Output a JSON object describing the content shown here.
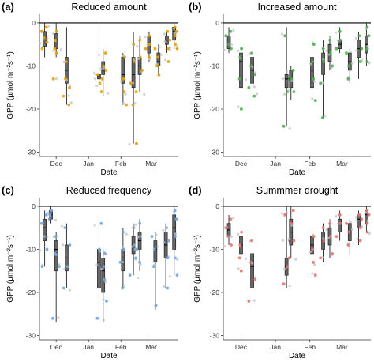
{
  "figure": {
    "ylabel": "GPP (µmol m⁻²s⁻¹)",
    "xlabel": "Date",
    "y_ticks": [
      "0",
      "-10",
      "-20",
      "-30"
    ],
    "x_ticks": [
      "Dec",
      "Jan",
      "Feb",
      "Mar"
    ]
  },
  "chart_data": [
    {
      "type": "scatter",
      "panel": "(a)",
      "title": "Reduced amount",
      "xlabel": "Date",
      "ylabel": "GPP (µmol m⁻²s⁻¹)",
      "ylim": [
        -31,
        2
      ],
      "grid": false,
      "x_ticks": [
        "Dec",
        "Jan",
        "Feb",
        "Mar"
      ],
      "point_color": "#E69F00",
      "reference_line": 0,
      "series": [
        {
          "x": "2019-11-20",
          "min": -8,
          "q1": -5.5,
          "median": -3.5,
          "q3": -2,
          "max": 0,
          "points": [
            -1,
            -2,
            -3.5,
            -4.5,
            -6
          ]
        },
        {
          "x": "2019-12-01",
          "min": -8,
          "q1": -6,
          "median": -4,
          "q3": -2.5,
          "max": 0,
          "points": [
            -2,
            -4,
            -6,
            -7,
            -13
          ]
        },
        {
          "x": "2019-12-11",
          "min": -19,
          "q1": -14,
          "median": -11,
          "q3": -8,
          "max": -1,
          "points": [
            -9,
            -13,
            -15,
            -17,
            -19
          ]
        },
        {
          "x": "2020-01-11",
          "min": -14,
          "q1": -13,
          "median": -12.5,
          "q3": -12,
          "max": 0,
          "points": [
            -12,
            -13,
            -14
          ]
        },
        {
          "x": "2020-01-15",
          "min": -17,
          "q1": -12,
          "median": -11,
          "q3": -9,
          "max": -6,
          "points": [
            -7,
            -10,
            -11,
            -16
          ]
        },
        {
          "x": "2020-02-03",
          "min": -19,
          "q1": -14,
          "median": -12,
          "q3": -8,
          "max": -7,
          "points": [
            -8,
            -13,
            -16,
            -19
          ]
        },
        {
          "x": "2020-02-13",
          "min": -28,
          "q1": -15,
          "median": -12,
          "q3": -8,
          "max": -2,
          "points": [
            -5,
            -9,
            -14,
            -19,
            -28
          ]
        },
        {
          "x": "2020-02-19",
          "min": -16,
          "q1": -12,
          "median": -10,
          "q3": -8,
          "max": -3,
          "points": [
            -4,
            -8,
            -11,
            -16
          ]
        },
        {
          "x": "2020-02-28",
          "min": -9,
          "q1": -7,
          "median": -5,
          "q3": -3,
          "max": -2,
          "points": [
            -3,
            -5,
            -6,
            -8
          ]
        },
        {
          "x": "2020-03-08",
          "min": -12,
          "q1": -10,
          "median": -9,
          "q3": -7,
          "max": -5,
          "points": [
            -6,
            -8,
            -10,
            -12
          ]
        },
        {
          "x": "2020-03-16",
          "min": -7,
          "q1": -5,
          "median": -4,
          "q3": -3,
          "max": -2,
          "points": [
            -2,
            -4,
            -6,
            -9
          ]
        },
        {
          "x": "2020-03-23",
          "min": -6,
          "q1": -4,
          "median": -2,
          "q3": -1,
          "max": 0,
          "points": [
            -1,
            -2,
            -3,
            -5,
            -6
          ]
        }
      ]
    },
    {
      "type": "scatter",
      "panel": "(b)",
      "title": "Increased amount",
      "xlabel": "Date",
      "ylabel": "GPP (µmol m⁻²s⁻¹)",
      "ylim": [
        -31,
        2
      ],
      "grid": false,
      "x_ticks": [
        "Dec",
        "Jan",
        "Feb",
        "Mar"
      ],
      "point_color": "#4DAF4A",
      "reference_line": 0,
      "series": [
        {
          "x": "2019-11-20",
          "min": -7,
          "q1": -6,
          "median": -5,
          "q3": -3,
          "max": -1,
          "points": [
            -2,
            -3,
            -5,
            -6
          ]
        },
        {
          "x": "2019-12-01",
          "min": -21,
          "q1": -15,
          "median": -9,
          "q3": -7,
          "max": -6,
          "points": [
            -6,
            -8,
            -13,
            -20
          ]
        },
        {
          "x": "2019-12-11",
          "min": -17,
          "q1": -14,
          "median": -11,
          "q3": -8,
          "max": -6,
          "points": [
            -7,
            -10,
            -12,
            -15,
            -17
          ]
        },
        {
          "x": "2020-01-11",
          "min": -24,
          "q1": -15,
          "median": -13,
          "q3": -12,
          "max": -1,
          "points": [
            -3,
            -13,
            -16,
            -24
          ]
        },
        {
          "x": "2020-01-15",
          "min": -18,
          "q1": -15,
          "median": -13,
          "q3": -11,
          "max": -10,
          "points": [
            -11,
            -13,
            -16
          ]
        },
        {
          "x": "2020-02-03",
          "min": -18,
          "q1": -15,
          "median": -11,
          "q3": -8,
          "max": -3,
          "points": [
            -5,
            -9,
            -13,
            -18
          ]
        },
        {
          "x": "2020-02-13",
          "min": -22,
          "q1": -12,
          "median": -10,
          "q3": -7,
          "max": -4,
          "points": [
            -6,
            -9,
            -14,
            -22
          ]
        },
        {
          "x": "2020-02-19",
          "min": -11,
          "q1": -9,
          "median": -7,
          "q3": -5,
          "max": -3,
          "points": [
            -4,
            -7,
            -10
          ]
        },
        {
          "x": "2020-02-28",
          "min": -7,
          "q1": -6,
          "median": -5,
          "q3": -4,
          "max": -1,
          "points": [
            -2,
            -4,
            -6
          ]
        },
        {
          "x": "2020-03-08",
          "min": -14,
          "q1": -11,
          "median": -9,
          "q3": -7,
          "max": -6,
          "points": [
            -7,
            -10,
            -13
          ]
        },
        {
          "x": "2020-03-16",
          "min": -13,
          "q1": -8,
          "median": -6,
          "q3": -4,
          "max": -2,
          "points": [
            -3,
            -6,
            -9
          ]
        },
        {
          "x": "2020-03-23",
          "min": -10,
          "q1": -7,
          "median": -5,
          "q3": -3,
          "max": 0,
          "points": [
            -1,
            -3,
            -6,
            -9
          ]
        }
      ]
    },
    {
      "type": "scatter",
      "panel": "(c)",
      "title": "Reduced frequency",
      "xlabel": "Date",
      "ylabel": "GPP (µmol m⁻²s⁻¹)",
      "ylim": [
        -31,
        2
      ],
      "grid": false,
      "x_ticks": [
        "Dec",
        "Jan",
        "Feb",
        "Mar"
      ],
      "point_color": "#6EA6E6",
      "reference_line": 0,
      "series": [
        {
          "x": "2019-11-20",
          "min": -14,
          "q1": -8,
          "median": -5,
          "q3": -3,
          "max": -1,
          "points": [
            -2,
            -4,
            -7,
            -10,
            -14
          ]
        },
        {
          "x": "2019-11-26",
          "min": -4,
          "q1": -3,
          "median": -2,
          "q3": -1,
          "max": 0,
          "points": [
            -1,
            -2,
            -3
          ]
        },
        {
          "x": "2019-12-01",
          "min": -27,
          "q1": -15,
          "median": -10,
          "q3": -8,
          "max": -6,
          "points": [
            -7,
            -11,
            -14,
            -26
          ]
        },
        {
          "x": "2019-12-11",
          "min": -19,
          "q1": -15,
          "median": -12,
          "q3": -9,
          "max": -4,
          "points": [
            -5,
            -9,
            -14,
            -19
          ]
        },
        {
          "x": "2020-01-11",
          "min": -26,
          "q1": -19,
          "median": -13,
          "q3": -10,
          "max": -3,
          "points": [
            -4,
            -10,
            -14,
            -26
          ]
        },
        {
          "x": "2020-01-15",
          "min": -27,
          "q1": -20,
          "median": -15,
          "q3": -12,
          "max": -10,
          "points": [
            -11,
            -14,
            -17,
            -22
          ]
        },
        {
          "x": "2020-02-03",
          "min": -19,
          "q1": -15,
          "median": -12,
          "q3": -10,
          "max": -5,
          "points": [
            -6,
            -10,
            -13,
            -19
          ]
        },
        {
          "x": "2020-02-13",
          "min": -16,
          "q1": -11,
          "median": -9,
          "q3": -7,
          "max": -4,
          "points": [
            -5,
            -9,
            -12,
            -16
          ]
        },
        {
          "x": "2020-02-19",
          "min": -15,
          "q1": -10,
          "median": -8,
          "q3": -6,
          "max": -3,
          "points": [
            -4,
            -7,
            -10,
            -13
          ]
        },
        {
          "x": "2020-03-05",
          "min": -24,
          "q1": -13,
          "median": -10,
          "q3": -8,
          "max": -6,
          "points": [
            -7,
            -10,
            -14,
            -23
          ]
        },
        {
          "x": "2020-03-15",
          "min": -19,
          "q1": -12,
          "median": -9,
          "q3": -6,
          "max": -4,
          "points": [
            -5,
            -8,
            -12,
            -19
          ]
        },
        {
          "x": "2020-03-23",
          "min": -16,
          "q1": -10,
          "median": -5,
          "q3": -2,
          "max": 0,
          "points": [
            -1,
            -3,
            -7,
            -12,
            -16
          ]
        }
      ]
    },
    {
      "type": "scatter",
      "panel": "(d)",
      "title": "Summmer drought",
      "xlabel": "Date",
      "ylabel": "GPP (µmol m⁻²s⁻¹)",
      "ylim": [
        -31,
        2
      ],
      "grid": false,
      "x_ticks": [
        "Dec",
        "Jan",
        "Feb",
        "Mar"
      ],
      "point_color": "#E8736C",
      "reference_line": 0,
      "series": [
        {
          "x": "2019-11-20",
          "min": -9,
          "q1": -7,
          "median": -5.5,
          "q3": -4,
          "max": -2,
          "points": [
            -3,
            -5,
            -7,
            -9
          ]
        },
        {
          "x": "2019-12-01",
          "min": -15,
          "q1": -11,
          "median": -9,
          "q3": -7,
          "max": -5,
          "points": [
            -6,
            -9,
            -12,
            -15
          ]
        },
        {
          "x": "2019-12-11",
          "min": -23,
          "q1": -19,
          "median": -14,
          "q3": -11,
          "max": -6,
          "points": [
            -8,
            -13,
            -17,
            -22
          ]
        },
        {
          "x": "2020-01-11",
          "min": -19,
          "q1": -16,
          "median": -14,
          "q3": -12,
          "max": 0,
          "points": [
            -2,
            -8,
            -14,
            -18
          ]
        },
        {
          "x": "2020-01-15",
          "min": -12,
          "q1": -9,
          "median": -6,
          "q3": -3,
          "max": 0,
          "points": [
            -1,
            -4,
            -8,
            -12
          ]
        },
        {
          "x": "2020-02-03",
          "min": -16,
          "q1": -11,
          "median": -9,
          "q3": -7,
          "max": -6,
          "points": [
            -7,
            -10,
            -13,
            -16
          ]
        },
        {
          "x": "2020-02-13",
          "min": -13,
          "q1": -10,
          "median": -8,
          "q3": -6,
          "max": -4,
          "points": [
            -5,
            -8,
            -12
          ]
        },
        {
          "x": "2020-02-19",
          "min": -12,
          "q1": -9,
          "median": -7,
          "q3": -5,
          "max": -3,
          "points": [
            -4,
            -7,
            -11
          ]
        },
        {
          "x": "2020-02-28",
          "min": -8,
          "q1": -6,
          "median": -4,
          "q3": -3,
          "max": -1,
          "points": [
            -2,
            -4,
            -7
          ]
        },
        {
          "x": "2020-03-08",
          "min": -11,
          "q1": -8,
          "median": -6,
          "q3": -4,
          "max": -3,
          "points": [
            -4,
            -6,
            -9
          ]
        },
        {
          "x": "2020-03-16",
          "min": -9,
          "q1": -5,
          "median": -3,
          "q3": -2,
          "max": -1,
          "points": [
            -2,
            -3,
            -5,
            -8
          ]
        },
        {
          "x": "2020-03-23",
          "min": -6,
          "q1": -4,
          "median": -2,
          "q3": -1,
          "max": 0,
          "points": [
            -1,
            -2,
            -4,
            -6
          ]
        }
      ]
    }
  ]
}
